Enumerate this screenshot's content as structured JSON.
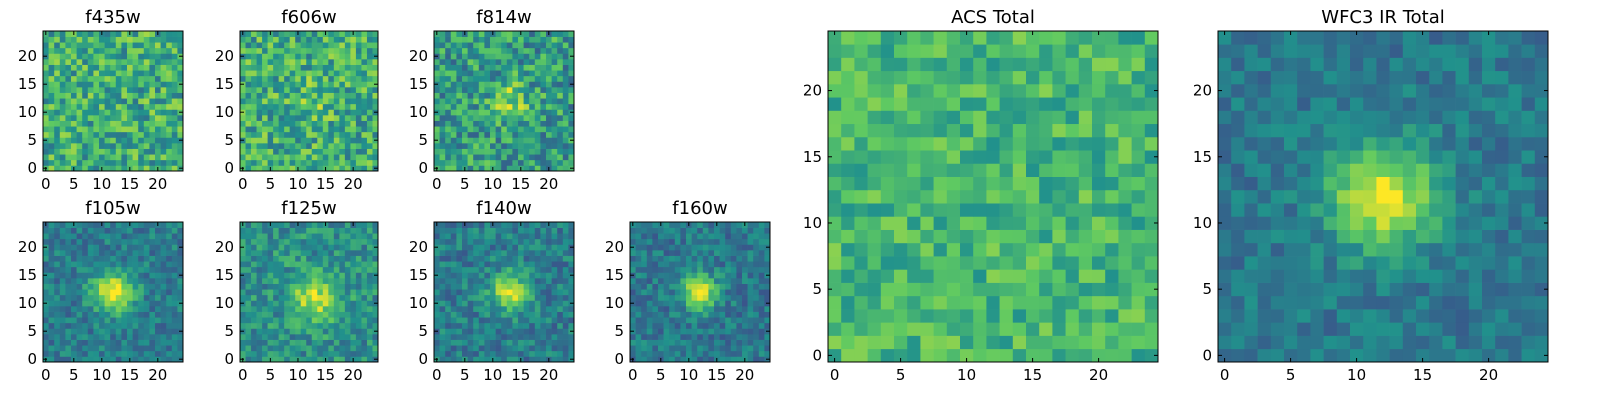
{
  "figure": {
    "description_type": "heatmap-grid",
    "colormap": [
      "#440154",
      "#3b528b",
      "#21918c",
      "#5ec962",
      "#fde725"
    ]
  },
  "chart_data": [
    {
      "type": "heatmap",
      "title": "f435w",
      "grid": 25,
      "xlim": [
        0,
        24
      ],
      "ylim": [
        0,
        24
      ],
      "xticks": [
        "0",
        "5",
        "10",
        "15",
        "20"
      ],
      "yticks": [
        "0",
        "5",
        "10",
        "15",
        "20"
      ],
      "source": {
        "center": null,
        "amplitude": 0.0,
        "sigma": 0
      },
      "background": 0.62,
      "noise": 0.24
    },
    {
      "type": "heatmap",
      "title": "f606w",
      "grid": 25,
      "xlim": [
        0,
        24
      ],
      "ylim": [
        0,
        24
      ],
      "xticks": [
        "0",
        "5",
        "10",
        "15",
        "20"
      ],
      "yticks": [
        "0",
        "5",
        "10",
        "15",
        "20"
      ],
      "source": {
        "center": [
          12,
          12
        ],
        "amplitude": 0.12,
        "sigma": 2.5
      },
      "background": 0.62,
      "noise": 0.24
    },
    {
      "type": "heatmap",
      "title": "f814w",
      "grid": 25,
      "xlim": [
        0,
        24
      ],
      "ylim": [
        0,
        24
      ],
      "xticks": [
        "0",
        "5",
        "10",
        "15",
        "20"
      ],
      "yticks": [
        "0",
        "5",
        "10",
        "15",
        "20"
      ],
      "source": {
        "center": [
          13,
          12
        ],
        "amplitude": 0.28,
        "sigma": 2.2
      },
      "background": 0.55,
      "noise": 0.24
    },
    {
      "type": "heatmap",
      "title": "f105w",
      "grid": 25,
      "xlim": [
        0,
        24
      ],
      "ylim": [
        0,
        24
      ],
      "xticks": [
        "0",
        "5",
        "10",
        "15",
        "20"
      ],
      "yticks": [
        "0",
        "5",
        "10",
        "15",
        "20"
      ],
      "source": {
        "center": [
          12,
          12
        ],
        "amplitude": 0.55,
        "sigma": 2.6
      },
      "background": 0.42,
      "noise": 0.14
    },
    {
      "type": "heatmap",
      "title": "f125w",
      "grid": 25,
      "xlim": [
        0,
        24
      ],
      "ylim": [
        0,
        24
      ],
      "xticks": [
        "0",
        "5",
        "10",
        "15",
        "20"
      ],
      "yticks": [
        "0",
        "5",
        "10",
        "15",
        "20"
      ],
      "source": {
        "center": [
          13,
          11
        ],
        "amplitude": 0.4,
        "sigma": 3.0
      },
      "background": 0.5,
      "noise": 0.17
    },
    {
      "type": "heatmap",
      "title": "f140w",
      "grid": 25,
      "xlim": [
        0,
        24
      ],
      "ylim": [
        0,
        24
      ],
      "xticks": [
        "0",
        "5",
        "10",
        "15",
        "20"
      ],
      "yticks": [
        "0",
        "5",
        "10",
        "15",
        "20"
      ],
      "source": {
        "center": [
          13,
          12
        ],
        "amplitude": 0.5,
        "sigma": 2.4
      },
      "background": 0.42,
      "noise": 0.15
    },
    {
      "type": "heatmap",
      "title": "f160w",
      "grid": 25,
      "xlim": [
        0,
        24
      ],
      "ylim": [
        0,
        24
      ],
      "xticks": [
        "0",
        "5",
        "10",
        "15",
        "20"
      ],
      "yticks": [
        "0",
        "5",
        "10",
        "15",
        "20"
      ],
      "source": {
        "center": [
          12,
          12
        ],
        "amplitude": 0.55,
        "sigma": 2.2
      },
      "background": 0.4,
      "noise": 0.14
    },
    {
      "type": "heatmap",
      "title": "ACS Total",
      "grid": 25,
      "xlim": [
        0,
        24
      ],
      "ylim": [
        0,
        24
      ],
      "xticks": [
        "0",
        "5",
        "10",
        "15",
        "20"
      ],
      "yticks": [
        "0",
        "5",
        "10",
        "15",
        "20"
      ],
      "source": {
        "center": null,
        "amplitude": 0.0,
        "sigma": 0
      },
      "background": 0.66,
      "noise": 0.16
    },
    {
      "type": "heatmap",
      "title": "WFC3 IR Total",
      "grid": 25,
      "xlim": [
        0,
        24
      ],
      "ylim": [
        0,
        24
      ],
      "xticks": [
        "0",
        "5",
        "10",
        "15",
        "20"
      ],
      "yticks": [
        "0",
        "5",
        "10",
        "15",
        "20"
      ],
      "source": {
        "center": [
          12,
          12
        ],
        "amplitude": 0.6,
        "sigma": 2.8
      },
      "background": 0.4,
      "noise": 0.11
    }
  ]
}
